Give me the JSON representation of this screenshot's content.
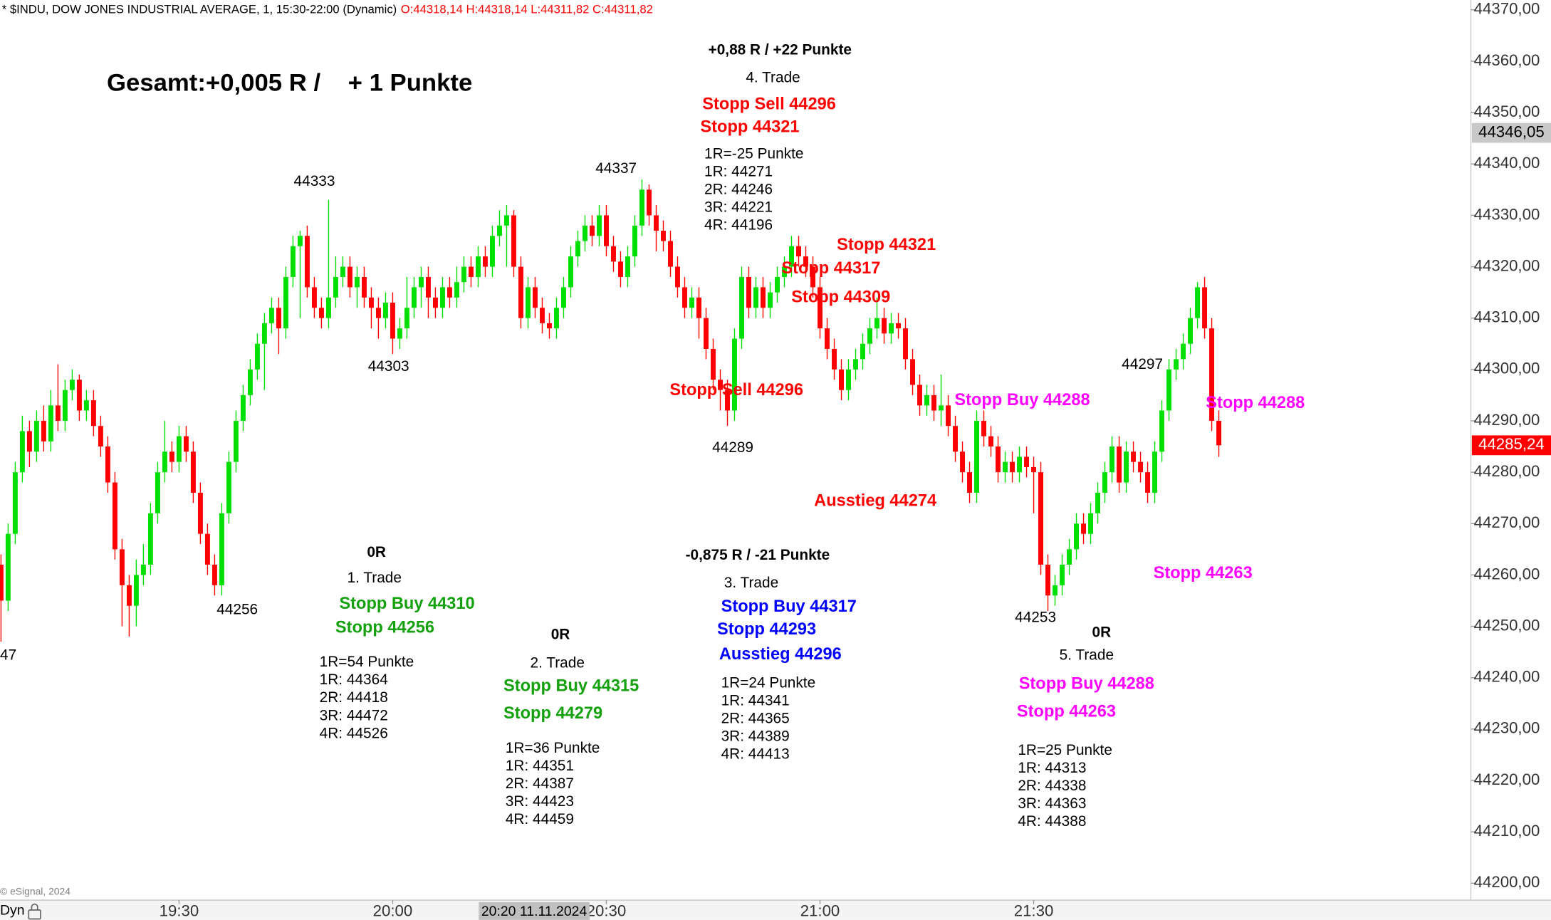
{
  "chart_data": {
    "type": "candlestick",
    "title": "* $INDU, DOW JONES INDUSTRIAL AVERAGE, 1, 15:30-22:00 (Dynamic)",
    "ohlc_readout": "O:44318,14 H:44318,14 L:44311,82 C:44311,82",
    "up_color": "#00e000",
    "down_color": "#ff0000",
    "x": [
      "19:05",
      "19:06",
      "19:07",
      "19:08",
      "19:09",
      "19:10",
      "19:11",
      "19:12",
      "19:13",
      "19:14",
      "19:15",
      "19:16",
      "19:17",
      "19:18",
      "19:19",
      "19:20",
      "19:21",
      "19:22",
      "19:23",
      "19:24",
      "19:25",
      "19:26",
      "19:27",
      "19:28",
      "19:29",
      "19:30",
      "19:31",
      "19:32",
      "19:33",
      "19:34",
      "19:35",
      "19:36",
      "19:37",
      "19:38",
      "19:39",
      "19:40",
      "19:41",
      "19:42",
      "19:43",
      "19:44",
      "19:45",
      "19:46",
      "19:47",
      "19:48",
      "19:49",
      "19:50",
      "19:51",
      "19:52",
      "19:53",
      "19:54",
      "19:55",
      "19:56",
      "19:57",
      "19:58",
      "19:59",
      "20:00",
      "20:01",
      "20:02",
      "20:03",
      "20:04",
      "20:05",
      "20:06",
      "20:07",
      "20:08",
      "20:09",
      "20:10",
      "20:11",
      "20:12",
      "20:13",
      "20:14",
      "20:15",
      "20:16",
      "20:17",
      "20:18",
      "20:19",
      "20:20",
      "20:21",
      "20:22",
      "20:23",
      "20:24",
      "20:25",
      "20:26",
      "20:27",
      "20:28",
      "20:29",
      "20:30",
      "20:31",
      "20:32",
      "20:33",
      "20:34",
      "20:35",
      "20:36",
      "20:37",
      "20:38",
      "20:39",
      "20:40",
      "20:41",
      "20:42",
      "20:43",
      "20:44",
      "20:45",
      "20:46",
      "20:47",
      "20:48",
      "20:49",
      "20:50",
      "20:51",
      "20:52",
      "20:53",
      "20:54",
      "20:55",
      "20:56",
      "20:57",
      "20:58",
      "20:59",
      "21:00",
      "21:01",
      "21:02",
      "21:03",
      "21:04",
      "21:05",
      "21:06",
      "21:07",
      "21:08",
      "21:09",
      "21:10",
      "21:11",
      "21:12",
      "21:13",
      "21:14",
      "21:15",
      "21:16",
      "21:17",
      "21:18",
      "21:19",
      "21:20",
      "21:21",
      "21:22",
      "21:23",
      "21:24",
      "21:25",
      "21:26",
      "21:27",
      "21:28",
      "21:29",
      "21:30",
      "21:31",
      "21:32",
      "21:33",
      "21:34",
      "21:35",
      "21:36",
      "21:37",
      "21:38",
      "21:39",
      "21:40",
      "21:41",
      "21:42",
      "21:43",
      "21:44",
      "21:45",
      "21:46",
      "21:47",
      "21:48",
      "21:49",
      "21:50",
      "21:51",
      "21:52",
      "21:53",
      "21:54",
      "21:55",
      "21:56"
    ],
    "open": [
      44262,
      44255,
      44268,
      44280,
      44288,
      44284,
      44290,
      44286,
      44293,
      44290,
      44296,
      44298,
      44292,
      44294,
      44289,
      44285,
      44278,
      44265,
      44258,
      44254,
      44260,
      44262,
      44272,
      44280,
      44284,
      44282,
      44287,
      44284,
      44276,
      44268,
      44262,
      44258,
      44272,
      44282,
      44290,
      44295,
      44300,
      44305,
      44309,
      44312,
      44308,
      44318,
      44324,
      44326,
      44316,
      44312,
      44310,
      44314,
      44318,
      44320,
      44316,
      44318,
      44314,
      44312,
      44310,
      44313,
      44306,
      44308,
      44312,
      44316,
      44318,
      44314,
      44312,
      44316,
      44314,
      44317,
      44320,
      44318,
      44322,
      44320,
      44326,
      44328,
      44330,
      44320,
      44310,
      44316,
      44312,
      44309,
      44308,
      44312,
      44316,
      44322,
      44325,
      44328,
      44326,
      44330,
      44324,
      44321,
      44318,
      44322,
      44328,
      44335,
      44330,
      44327,
      44325,
      44320,
      44316,
      44312,
      44314,
      44310,
      44304,
      44298,
      44296,
      44292,
      44306,
      44318,
      44312,
      44316,
      44312,
      44315,
      44318,
      44320,
      44324,
      44322,
      44320,
      44316,
      44308,
      44304,
      44300,
      44296,
      44300,
      44302,
      44305,
      44308,
      44310,
      44307,
      44309,
      44308,
      44302,
      44297,
      44293,
      44295,
      44292,
      44293,
      44289,
      44284,
      44280,
      44276,
      44290,
      44287,
      44285,
      44280,
      44282,
      44280,
      44283,
      44281,
      44280,
      44262,
      44256,
      44258,
      44262,
      44265,
      44270,
      44268,
      44272,
      44276,
      44280,
      44285,
      44278,
      44284,
      44282,
      44280,
      44276,
      44284,
      44292,
      44300,
      44302,
      44305,
      44310,
      44316,
      44308,
      44290
    ],
    "high": [
      44264,
      44270,
      44282,
      44291,
      44290,
      44292,
      44293,
      44296,
      44301,
      44298,
      44300,
      44299,
      44296,
      44296,
      44291,
      44287,
      44280,
      44267,
      44260,
      44263,
      44266,
      44274,
      44282,
      44290,
      44286,
      44289,
      44289,
      44286,
      44278,
      44270,
      44264,
      44274,
      44284,
      44292,
      44297,
      44302,
      44307,
      44311,
      44314,
      44314,
      44320,
      44326,
      44327,
      44328,
      44318,
      44314,
      44333,
      44322,
      44322,
      44322,
      44320,
      44320,
      44316,
      44314,
      44315,
      44315,
      44310,
      44318,
      44318,
      44320,
      44320,
      44316,
      44318,
      44318,
      44320,
      44322,
      44322,
      44324,
      44324,
      44328,
      44331,
      44332,
      44331,
      44322,
      44318,
      44318,
      44314,
      44311,
      44314,
      44318,
      44324,
      44327,
      44330,
      44330,
      44332,
      44332,
      44326,
      44323,
      44324,
      44330,
      44337,
      44336,
      44332,
      44329,
      44327,
      44322,
      44318,
      44316,
      44316,
      44312,
      44306,
      44300,
      44298,
      44308,
      44320,
      44320,
      44318,
      44318,
      44317,
      44320,
      44322,
      44326,
      44326,
      44324,
      44322,
      44318,
      44310,
      44306,
      44302,
      44302,
      44304,
      44307,
      44310,
      44314,
      44312,
      44311,
      44311,
      44310,
      44304,
      44299,
      44297,
      44297,
      44299,
      44295,
      44291,
      44286,
      44282,
      44292,
      44292,
      44289,
      44287,
      44284,
      44284,
      44285,
      44285,
      44283,
      44282,
      44264,
      44260,
      44264,
      44267,
      44272,
      44272,
      44274,
      44278,
      44282,
      44287,
      44287,
      44286,
      44286,
      44284,
      44282,
      44286,
      44294,
      44302,
      44304,
      44307,
      44312,
      44317,
      44318,
      44310,
      44292
    ],
    "low": [
      44247,
      44253,
      44266,
      44278,
      44281,
      44282,
      44284,
      44284,
      44288,
      44288,
      44294,
      44290,
      44290,
      44287,
      44283,
      44276,
      44263,
      44250,
      44248,
      44250,
      44258,
      44260,
      44270,
      44278,
      44280,
      44280,
      44282,
      44274,
      44266,
      44260,
      44256,
      44256,
      44270,
      44280,
      44288,
      44293,
      44298,
      44296,
      44307,
      44303,
      44306,
      44316,
      44310,
      44314,
      44310,
      44308,
      44308,
      44312,
      44316,
      44314,
      44312,
      44312,
      44308,
      44306,
      44308,
      44303,
      44304,
      44306,
      44310,
      44312,
      44310,
      44310,
      44310,
      44312,
      44312,
      44315,
      44316,
      44316,
      44318,
      44318,
      44324,
      44320,
      44318,
      44308,
      44308,
      44310,
      44307,
      44306,
      44306,
      44310,
      44314,
      44320,
      44323,
      44324,
      44324,
      44322,
      44319,
      44316,
      44316,
      44320,
      44326,
      44328,
      44323,
      44323,
      44318,
      44314,
      44310,
      44310,
      44306,
      44302,
      44296,
      44292,
      44289,
      44290,
      44304,
      44310,
      44310,
      44310,
      44310,
      44313,
      44316,
      44318,
      44320,
      44318,
      44314,
      44306,
      44302,
      44298,
      44294,
      44294,
      44298,
      44300,
      44303,
      44306,
      44305,
      44305,
      44306,
      44300,
      44295,
      44291,
      44291,
      44290,
      44289,
      44287,
      44282,
      44278,
      44274,
      44274,
      44285,
      44283,
      44278,
      44278,
      44278,
      44278,
      44279,
      44272,
      44260,
      44253,
      44254,
      44256,
      44260,
      44263,
      44266,
      44266,
      44270,
      44274,
      44278,
      44276,
      44276,
      44280,
      44278,
      44274,
      44274,
      44282,
      44290,
      44298,
      44300,
      44303,
      44308,
      44306,
      44288,
      44283
    ],
    "close": [
      44255,
      44268,
      44280,
      44288,
      44284,
      44290,
      44286,
      44293,
      44290,
      44296,
      44298,
      44292,
      44294,
      44289,
      44285,
      44278,
      44265,
      44258,
      44254,
      44260,
      44262,
      44272,
      44280,
      44284,
      44282,
      44287,
      44284,
      44276,
      44268,
      44262,
      44258,
      44272,
      44282,
      44290,
      44295,
      44300,
      44305,
      44309,
      44312,
      44308,
      44318,
      44324,
      44326,
      44316,
      44312,
      44310,
      44314,
      44318,
      44320,
      44316,
      44318,
      44314,
      44312,
      44310,
      44313,
      44306,
      44308,
      44312,
      44316,
      44318,
      44314,
      44312,
      44316,
      44314,
      44317,
      44320,
      44318,
      44322,
      44320,
      44326,
      44328,
      44330,
      44320,
      44310,
      44316,
      44312,
      44309,
      44308,
      44312,
      44316,
      44322,
      44325,
      44328,
      44326,
      44330,
      44324,
      44321,
      44318,
      44322,
      44328,
      44335,
      44330,
      44327,
      44325,
      44320,
      44316,
      44312,
      44314,
      44310,
      44304,
      44298,
      44296,
      44292,
      44306,
      44318,
      44312,
      44316,
      44312,
      44315,
      44318,
      44320,
      44324,
      44322,
      44320,
      44316,
      44308,
      44304,
      44300,
      44296,
      44300,
      44302,
      44305,
      44308,
      44310,
      44307,
      44309,
      44308,
      44302,
      44297,
      44293,
      44295,
      44292,
      44293,
      44289,
      44284,
      44280,
      44276,
      44290,
      44287,
      44285,
      44280,
      44282,
      44280,
      44283,
      44281,
      44280,
      44262,
      44256,
      44258,
      44262,
      44265,
      44270,
      44268,
      44272,
      44276,
      44280,
      44285,
      44278,
      44284,
      44282,
      44280,
      44276,
      44284,
      44292,
      44300,
      44302,
      44305,
      44310,
      44316,
      44308,
      44290,
      44285.24
    ],
    "ylim": [
      44196.7,
      44371.9
    ],
    "yticks": [
      {
        "value": 44200,
        "label": "44200,00"
      },
      {
        "value": 44210,
        "label": "44210,00"
      },
      {
        "value": 44220,
        "label": "44220,00"
      },
      {
        "value": 44230,
        "label": "44230,00"
      },
      {
        "value": 44240,
        "label": "44240,00"
      },
      {
        "value": 44250,
        "label": "44250,00"
      },
      {
        "value": 44260,
        "label": "44260,00"
      },
      {
        "value": 44270,
        "label": "44270,00"
      },
      {
        "value": 44280,
        "label": "44280,00"
      },
      {
        "value": 44290,
        "label": "44290,00"
      },
      {
        "value": 44300,
        "label": "44300,00"
      },
      {
        "value": 44310,
        "label": "44310,00"
      },
      {
        "value": 44320,
        "label": "44320,00"
      },
      {
        "value": 44330,
        "label": "44330,00"
      },
      {
        "value": 44340,
        "label": "44340,00"
      },
      {
        "value": 44350,
        "label": "44350,00"
      },
      {
        "value": 44360,
        "label": "44360,00"
      },
      {
        "value": 44370,
        "label": "44370,00"
      }
    ],
    "xticks": [
      "19:30",
      "20:00",
      "20:30",
      "21:00",
      "21:30"
    ],
    "price_markers": [
      {
        "value": 44346.05,
        "label": "44346,05",
        "color": "#c8c8c8",
        "text_color": "#000000"
      },
      {
        "value": 44285.24,
        "label": "44285,24",
        "color": "#ff0000",
        "text_color": "#ffffff"
      }
    ],
    "crosshair": {
      "x": "20:20",
      "label": "20:20 11.11.2024"
    },
    "watermark": "© eSignal, 2024",
    "mode_label": "Dyn",
    "annotations": [
      {
        "text": "Gesamt:+0,005 R /    + 1 Punkte",
        "color": "#000000"
      },
      {
        "text": "+0,88 R / +22 Punkte",
        "color": "#000000"
      },
      {
        "text": "4. Trade",
        "color": "#000000"
      },
      {
        "text": "Stopp Sell 44296",
        "color": "#ff0000"
      },
      {
        "text": "Stopp 44321",
        "color": "#ff0000"
      },
      {
        "text": "1R=-25 Punkte",
        "color": "#000000"
      },
      {
        "text": "1R: 44271",
        "color": "#000000"
      },
      {
        "text": "2R: 44246",
        "color": "#000000"
      },
      {
        "text": "3R: 44221",
        "color": "#000000"
      },
      {
        "text": "4R: 44196",
        "color": "#000000"
      },
      {
        "text": "44333",
        "color": "#000000"
      },
      {
        "text": "44337",
        "color": "#000000"
      },
      {
        "text": "44303",
        "color": "#000000"
      },
      {
        "text": "44256",
        "color": "#000000"
      },
      {
        "text": "47",
        "color": "#000000"
      },
      {
        "text": "44289",
        "color": "#000000"
      },
      {
        "text": "44253",
        "color": "#000000"
      },
      {
        "text": "44297",
        "color": "#000000"
      },
      {
        "text": "Stopp 44321",
        "color": "#ff0000"
      },
      {
        "text": "Stopp 44317",
        "color": "#ff0000"
      },
      {
        "text": "Stopp 44309",
        "color": "#ff0000"
      },
      {
        "text": "Stopp Sell 44296",
        "color": "#ff0000"
      },
      {
        "text": "Stopp Buy 44288",
        "color": "#ff00ff"
      },
      {
        "text": "Stopp 44288",
        "color": "#ff00ff"
      },
      {
        "text": "Ausstieg 44274",
        "color": "#ff0000"
      },
      {
        "text": "Stopp 44263",
        "color": "#ff00ff"
      },
      {
        "text": "0R",
        "color": "#000000"
      },
      {
        "text": "1. Trade",
        "color": "#000000"
      },
      {
        "text": "Stopp Buy 44310",
        "color": "#13a10e"
      },
      {
        "text": "Stopp 44256",
        "color": "#13a10e"
      },
      {
        "text": "1R=54 Punkte",
        "color": "#000000"
      },
      {
        "text": "1R: 44364",
        "color": "#000000"
      },
      {
        "text": "2R: 44418",
        "color": "#000000"
      },
      {
        "text": "3R: 44472",
        "color": "#000000"
      },
      {
        "text": "4R: 44526",
        "color": "#000000"
      },
      {
        "text": "0R",
        "color": "#000000"
      },
      {
        "text": "2. Trade",
        "color": "#000000"
      },
      {
        "text": "Stopp Buy 44315",
        "color": "#13a10e"
      },
      {
        "text": "Stopp 44279",
        "color": "#13a10e"
      },
      {
        "text": "1R=36 Punkte",
        "color": "#000000"
      },
      {
        "text": "1R: 44351",
        "color": "#000000"
      },
      {
        "text": "2R: 44387",
        "color": "#000000"
      },
      {
        "text": "3R: 44423",
        "color": "#000000"
      },
      {
        "text": "4R: 44459",
        "color": "#000000"
      },
      {
        "text": "-0,875 R / -21 Punkte",
        "color": "#000000"
      },
      {
        "text": "3. Trade",
        "color": "#000000"
      },
      {
        "text": "Stopp Buy 44317",
        "color": "#0000ff"
      },
      {
        "text": "Stopp 44293",
        "color": "#0000ff"
      },
      {
        "text": "Ausstieg 44296",
        "color": "#0000ff"
      },
      {
        "text": "1R=24 Punkte",
        "color": "#000000"
      },
      {
        "text": "1R: 44341",
        "color": "#000000"
      },
      {
        "text": "2R: 44365",
        "color": "#000000"
      },
      {
        "text": "3R: 44389",
        "color": "#000000"
      },
      {
        "text": "4R: 44413",
        "color": "#000000"
      },
      {
        "text": "0R",
        "color": "#000000"
      },
      {
        "text": "5. Trade",
        "color": "#000000"
      },
      {
        "text": "Stopp Buy 44288",
        "color": "#ff00ff"
      },
      {
        "text": "Stopp 44263",
        "color": "#ff00ff"
      },
      {
        "text": "1R=25 Punkte",
        "color": "#000000"
      },
      {
        "text": "1R: 44313",
        "color": "#000000"
      },
      {
        "text": "2R: 44338",
        "color": "#000000"
      },
      {
        "text": "3R: 44363",
        "color": "#000000"
      },
      {
        "text": "4R: 44388",
        "color": "#000000"
      }
    ]
  }
}
